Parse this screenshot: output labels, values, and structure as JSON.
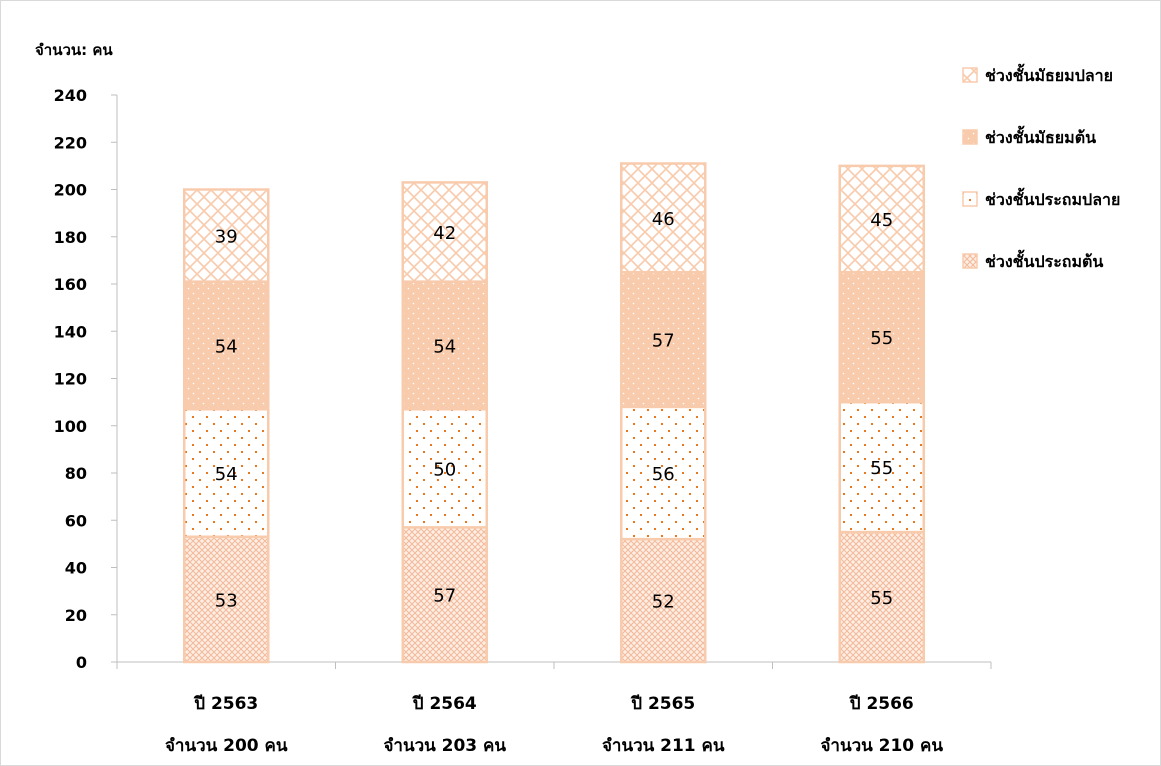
{
  "chart_data": {
    "type": "bar",
    "stacked": true,
    "y_unit_label": "จำนวน: คน",
    "ylim": [
      0,
      240
    ],
    "y_ticks": [
      0,
      20,
      40,
      60,
      80,
      100,
      120,
      140,
      160,
      180,
      200,
      220,
      240
    ],
    "categories": [
      {
        "line1": "ปี 2563",
        "line2": "จำนวน 200 คน"
      },
      {
        "line1": "ปี 2564",
        "line2": "จำนวน 203 คน"
      },
      {
        "line1": "ปี 2565",
        "line2": "จำนวน 211 คน"
      },
      {
        "line1": "ปี 2566",
        "line2": "จำนวน 210 คน"
      }
    ],
    "series": [
      {
        "name": "ช่วงชั้นประถมต้น",
        "values": [
          53,
          57,
          52,
          55
        ],
        "pattern": "fine-crosshatch",
        "color": "#f8cbad"
      },
      {
        "name": "ช่วงชั้นประถมปลาย",
        "values": [
          54,
          50,
          56,
          55
        ],
        "pattern": "sparse-dots",
        "color": "#e26b0a"
      },
      {
        "name": "ช่วงชั้นมัธยมต้น",
        "values": [
          54,
          54,
          57,
          55
        ],
        "pattern": "solid-dots",
        "color": "#f8cbad"
      },
      {
        "name": "ช่วงชั้นมัธยมปลาย",
        "values": [
          39,
          42,
          46,
          45
        ],
        "pattern": "diamond-lattice",
        "color": "#f8cbad"
      }
    ],
    "legend_order": [
      3,
      2,
      1,
      0
    ],
    "legend_position": "right-top",
    "grid": false
  }
}
